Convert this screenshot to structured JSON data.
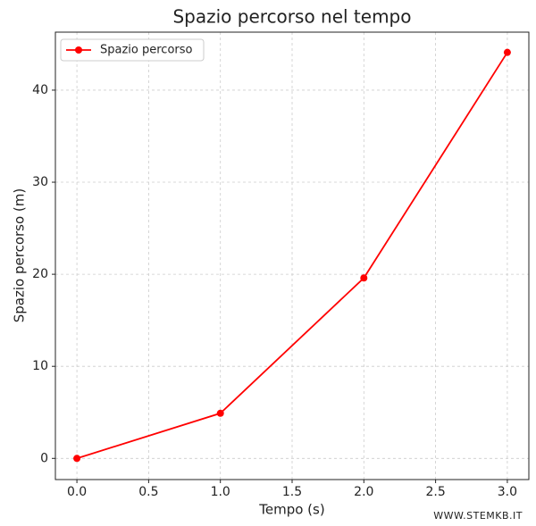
{
  "chart_data": {
    "type": "line",
    "title": "Spazio percorso nel tempo",
    "x_label": "Tempo (s)",
    "y_label": "Spazio percorso (m)",
    "x": [
      0,
      1,
      2,
      3
    ],
    "series": [
      {
        "name": "Spazio percorso",
        "color": "#ff0000",
        "values": [
          0,
          4.9,
          19.6,
          44.1
        ]
      }
    ],
    "xlim": [
      -0.15,
      3.15
    ],
    "xticks": [
      {
        "value": 0,
        "label": "0.0"
      },
      {
        "value": 0.5,
        "label": "0.5"
      },
      {
        "value": 1,
        "label": "1.0"
      },
      {
        "value": 1.5,
        "label": "1.5"
      },
      {
        "value": 2,
        "label": "2.0"
      },
      {
        "value": 2.5,
        "label": "2.5"
      },
      {
        "value": 3,
        "label": "3.0"
      }
    ],
    "ylim": [
      -2.3,
      46.3
    ],
    "yticks": [
      0,
      10,
      20,
      30,
      40
    ],
    "grid": true,
    "legend": "upper left",
    "watermark": "WWW.STEMKB.IT"
  }
}
